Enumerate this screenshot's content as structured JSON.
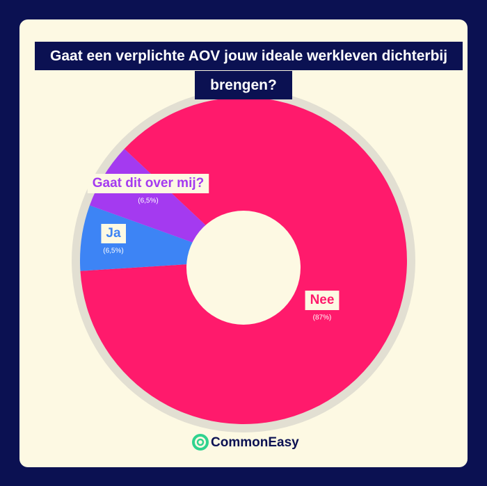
{
  "chart_data": {
    "type": "donut",
    "title": "Gaat een verplichte AOV jouw ideale werkleven dichterbij brengen?",
    "categories": [
      "Nee",
      "Ja",
      "Gaat dit over mij?"
    ],
    "values": [
      87,
      6.5,
      6.5
    ],
    "value_labels": [
      "(87%)",
      "(6,5%)",
      "(6,5%)"
    ],
    "colors": [
      "#ff1a6c",
      "#3d84f5",
      "#a43af0"
    ]
  },
  "brand": "CommonEasy"
}
